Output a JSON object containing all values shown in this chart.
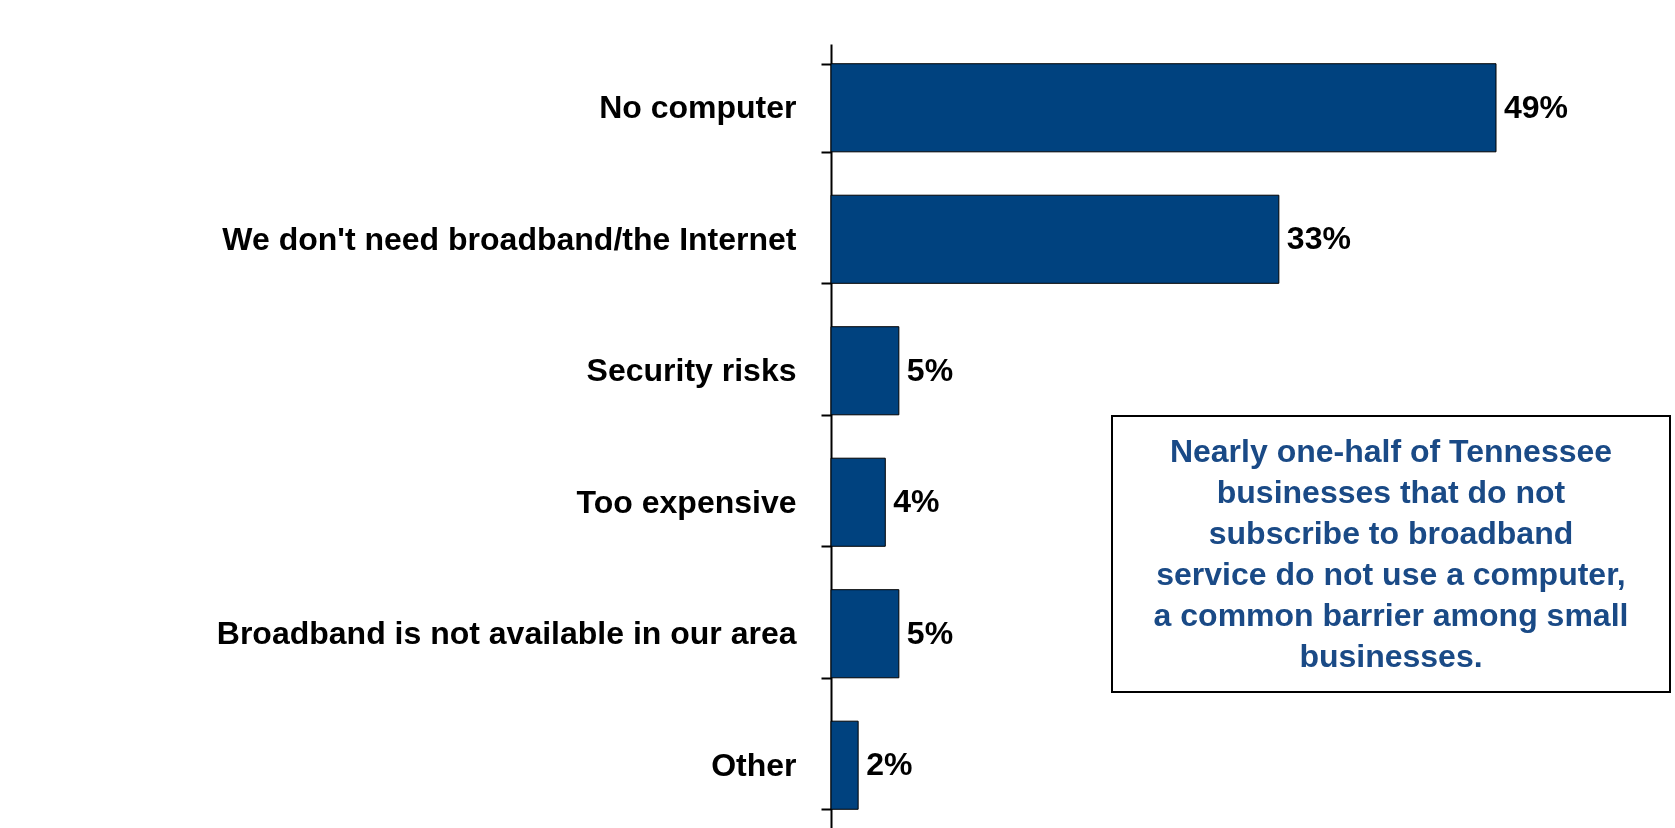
{
  "chart_data": {
    "type": "bar",
    "orientation": "horizontal",
    "categories": [
      "No computer",
      "We don't need broadband/the Internet",
      "Security risks",
      "Too expensive",
      "Broadband is not available in our area",
      "Other"
    ],
    "values": [
      49,
      33,
      5,
      4,
      5,
      2
    ],
    "color": "#00427f",
    "value_labels": [
      "49%",
      "33%",
      "5%",
      "4%",
      "5%",
      "2%"
    ],
    "annotations": [
      "Nearly one-half of Tennessee businesses that do not subscribe to broadband service do not use a computer, a common barrier among small businesses."
    ]
  }
}
